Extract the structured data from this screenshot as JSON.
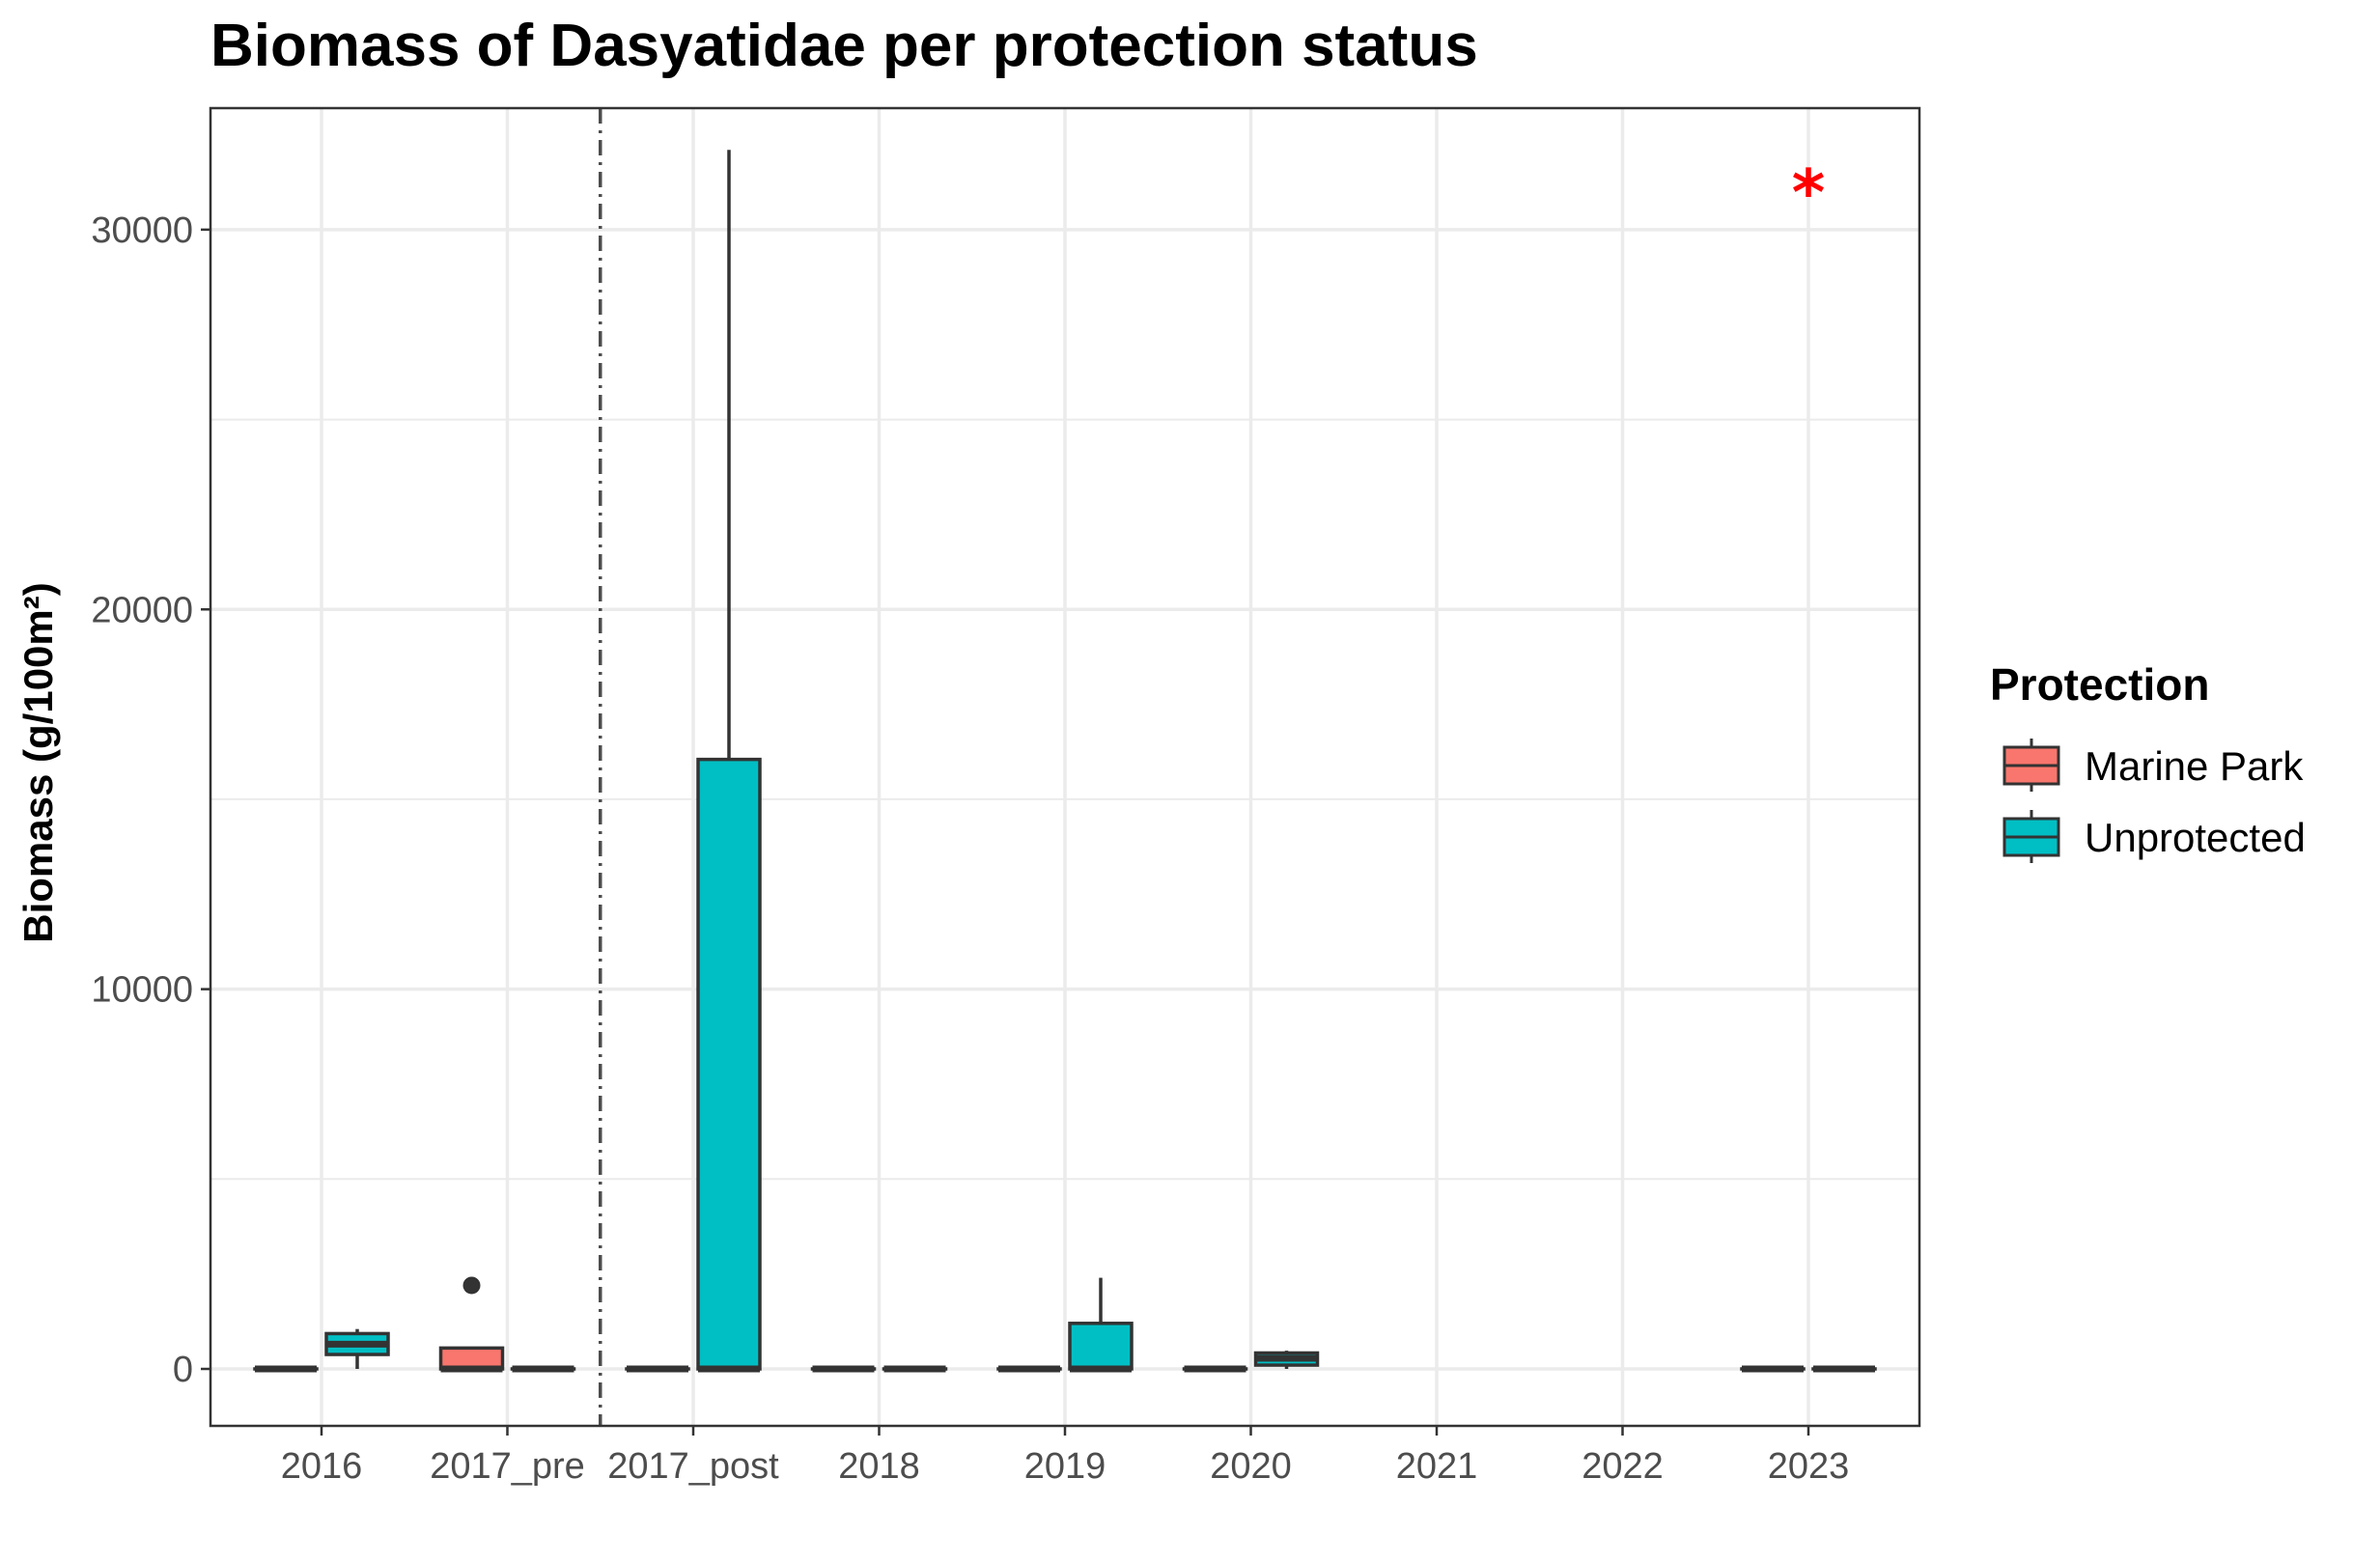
{
  "chart_data": {
    "type": "boxplot",
    "title": "Biomass of Dasyatidae per protection status",
    "xlabel": "",
    "ylabel": "Biomass (g/100m²)",
    "categories": [
      "2016",
      "2017_pre",
      "2017_post",
      "2018",
      "2019",
      "2020",
      "2021",
      "2022",
      "2023"
    ],
    "ylim": [
      -1500,
      33200
    ],
    "yticks": [
      0,
      10000,
      20000,
      30000
    ],
    "grid": true,
    "legend": {
      "title": "Protection",
      "placement": "right",
      "entries": [
        "Marine Park",
        "Unprotected"
      ]
    },
    "colors": {
      "Marine Park": "#F8766D",
      "Unprotected": "#00BFC4",
      "box_outline": "#333333",
      "grid": "#ebebeb",
      "panel_border": "#333333",
      "vline": "#4d4d4d",
      "annotation": "#ff0000"
    },
    "vline_between": [
      "2017_pre",
      "2017_post"
    ],
    "series": [
      {
        "name": "Marine Park",
        "boxes": [
          {
            "category": "2016",
            "min": 0,
            "q1": 0,
            "median": 0,
            "q3": 0,
            "max": 0,
            "outliers": []
          },
          {
            "category": "2017_pre",
            "min": 0,
            "q1": 0,
            "median": 0,
            "q3": 550,
            "max": 550,
            "outliers": [
              2200
            ]
          },
          {
            "category": "2017_post",
            "min": 0,
            "q1": 0,
            "median": 0,
            "q3": 0,
            "max": 0,
            "outliers": []
          },
          {
            "category": "2018",
            "min": 0,
            "q1": 0,
            "median": 0,
            "q3": 0,
            "max": 0,
            "outliers": []
          },
          {
            "category": "2019",
            "min": 0,
            "q1": 0,
            "median": 0,
            "q3": 0,
            "max": 0,
            "outliers": []
          },
          {
            "category": "2020",
            "min": 0,
            "q1": 0,
            "median": 0,
            "q3": 0,
            "max": 0,
            "outliers": []
          },
          {
            "category": "2023",
            "min": 0,
            "q1": 0,
            "median": 0,
            "q3": 0,
            "max": 0,
            "outliers": []
          }
        ]
      },
      {
        "name": "Unprotected",
        "boxes": [
          {
            "category": "2016",
            "min": 0,
            "q1": 380,
            "median": 650,
            "q3": 930,
            "max": 1050,
            "outliers": []
          },
          {
            "category": "2017_pre",
            "min": 0,
            "q1": 0,
            "median": 0,
            "q3": 0,
            "max": 0,
            "outliers": []
          },
          {
            "category": "2017_post",
            "min": 0,
            "q1": 0,
            "median": 0,
            "q3": 16050,
            "max": 32100,
            "outliers": []
          },
          {
            "category": "2018",
            "min": 0,
            "q1": 0,
            "median": 0,
            "q3": 0,
            "max": 0,
            "outliers": []
          },
          {
            "category": "2019",
            "min": 0,
            "q1": 0,
            "median": 0,
            "q3": 1200,
            "max": 2400,
            "outliers": []
          },
          {
            "category": "2020",
            "min": 0,
            "q1": 100,
            "median": 280,
            "q3": 420,
            "max": 480,
            "outliers": []
          },
          {
            "category": "2023",
            "min": 0,
            "q1": 0,
            "median": 0,
            "q3": 0,
            "max": 0,
            "outliers": []
          }
        ]
      }
    ],
    "annotations": [
      {
        "text": "*",
        "category": "2023",
        "y": 31300,
        "color": "#ff0000"
      }
    ]
  }
}
